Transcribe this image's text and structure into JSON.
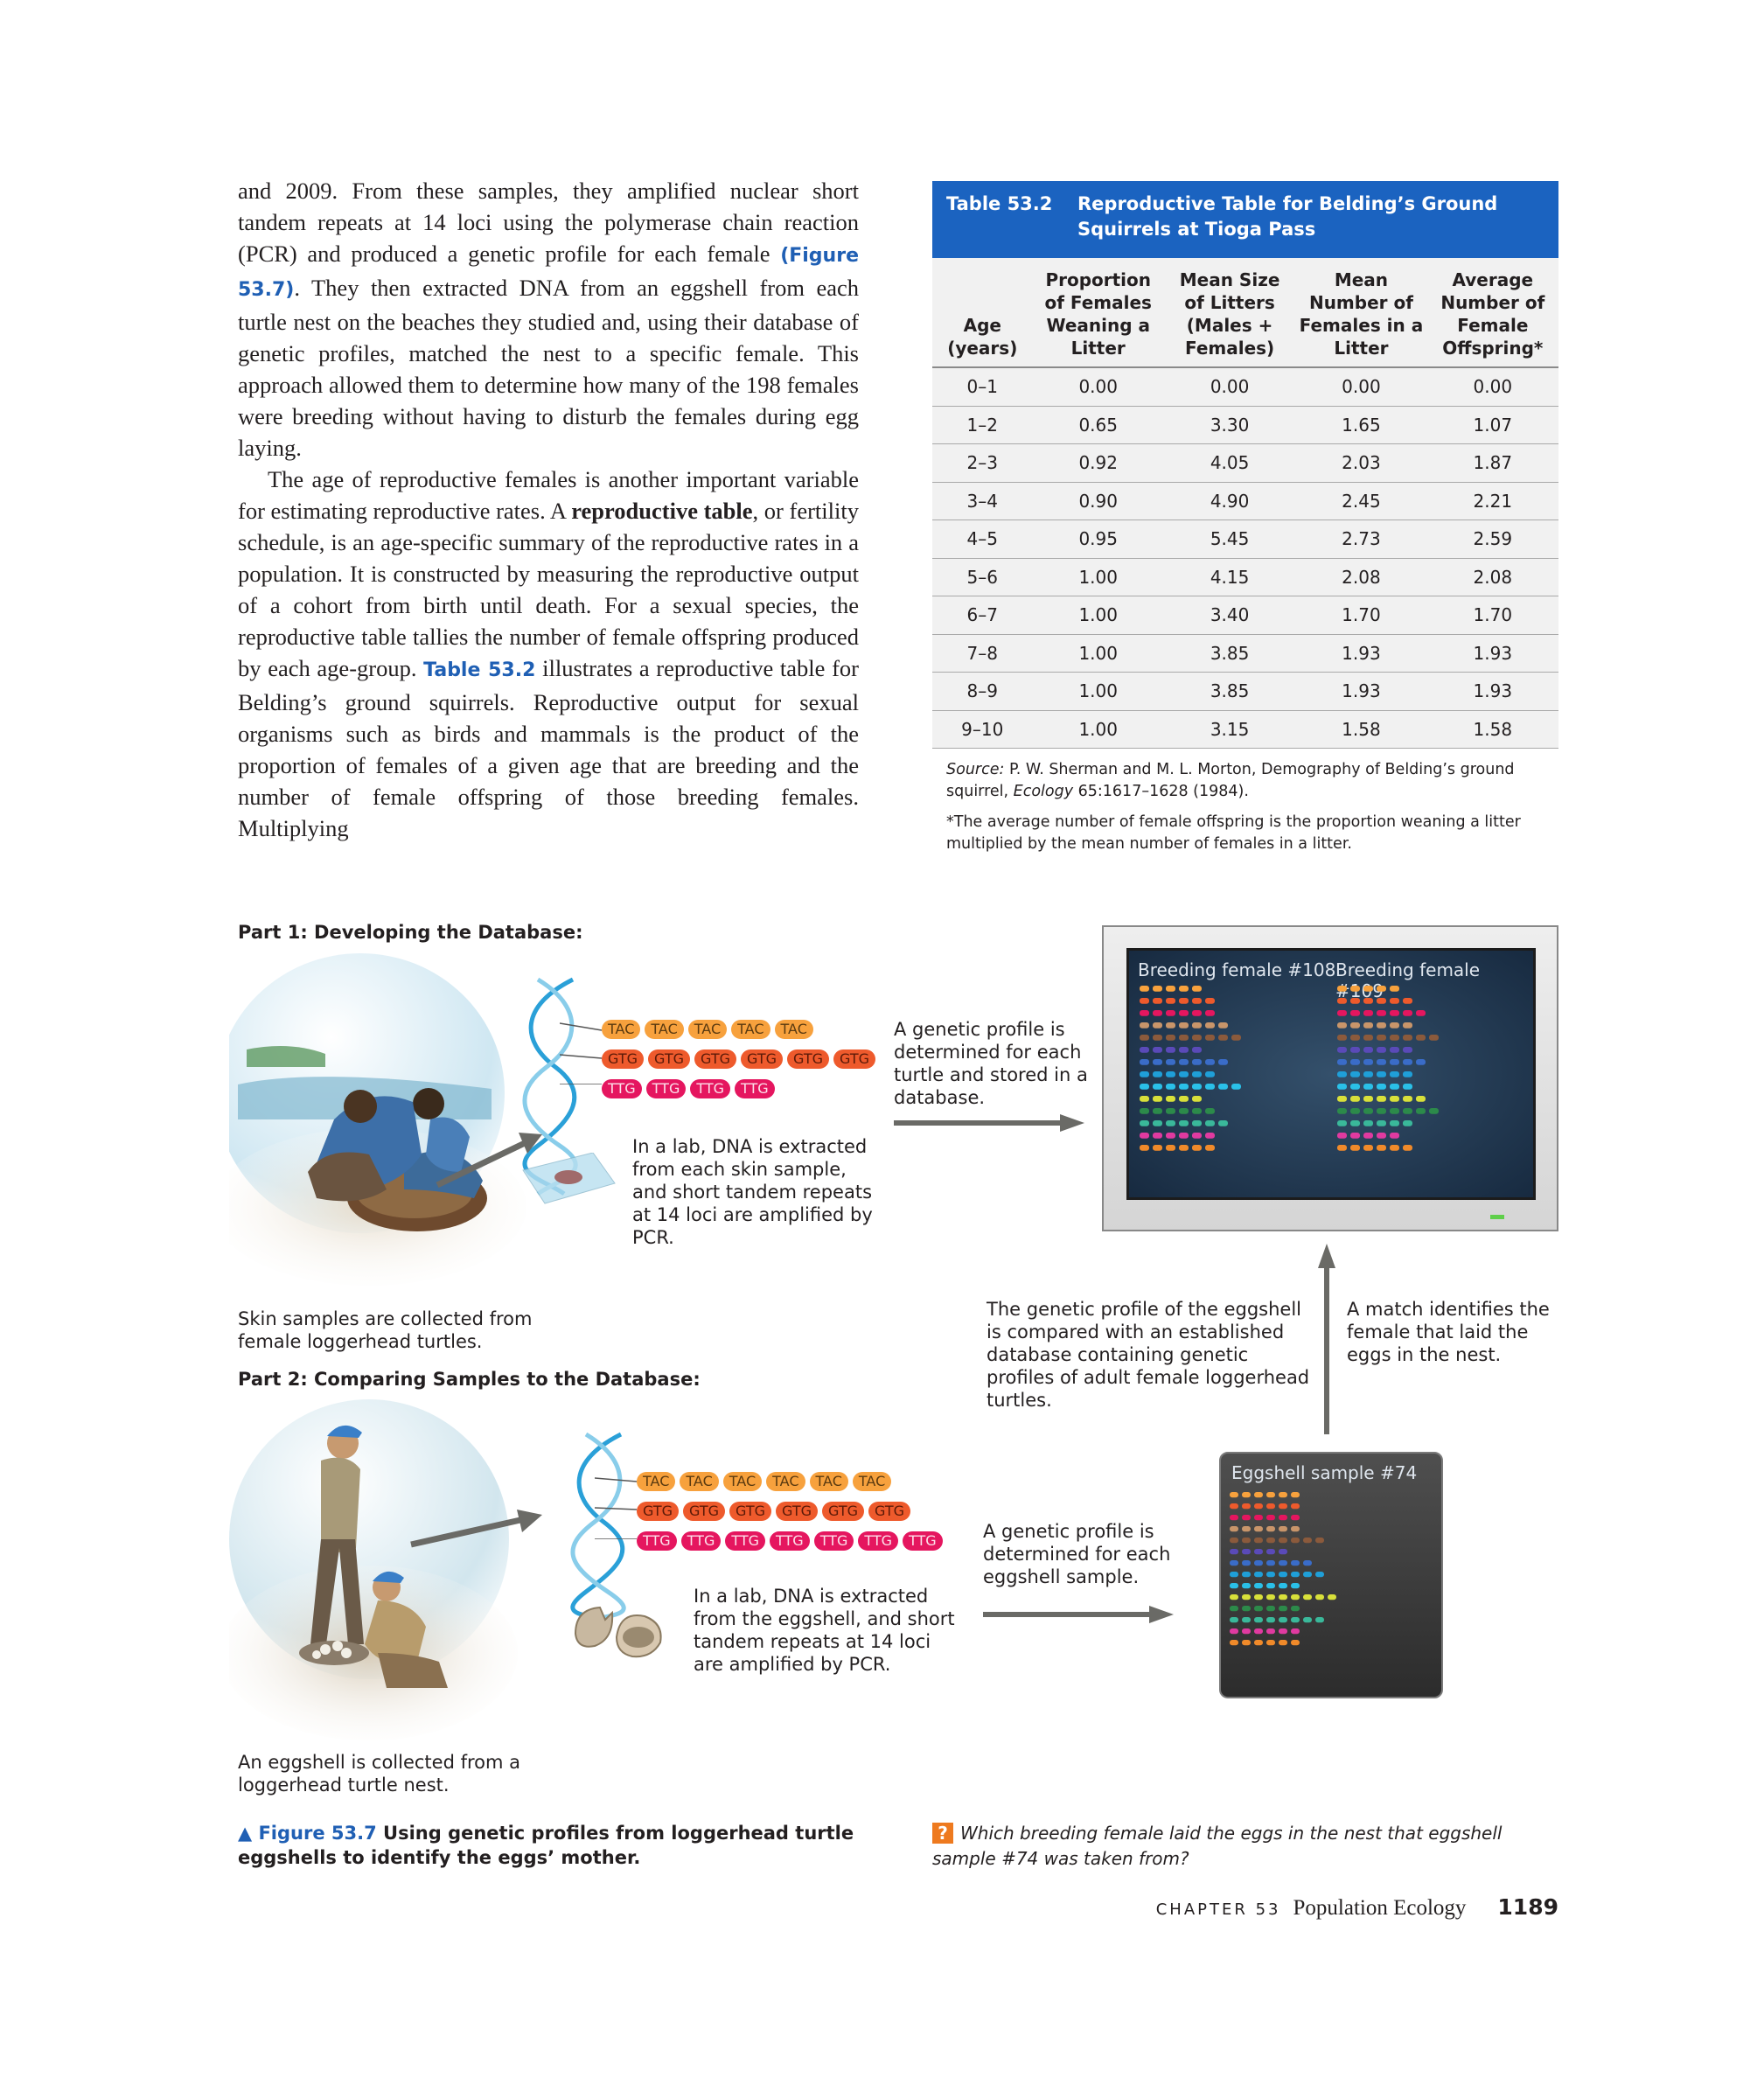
{
  "body": {
    "p1_a": "and 2009. From these samples, they amplified nuclear short tandem repeats at 14 loci using the polymerase chain reaction (PCR) and produced a genetic profile for each female ",
    "p1_ref": "(Figure 53.7)",
    "p1_b": ". They then extracted DNA from an eggshell from each turtle nest on the beaches they studied and, using their database of genetic profiles, matched the nest to a specific female. This approach allowed them to determine how many of the 198 females were breeding without having to disturb the females during egg laying.",
    "p2_a": "The age of reproductive females is another important variable for estimating reproductive rates. A ",
    "p2_term": "reproductive table",
    "p2_b": ", or fertility schedule, is an age-specific summary of the reproductive rates in a population. It is constructed by measuring the reproductive output of a cohort from birth until death. For a sexual species, the reproductive table tallies the number of female offspring produced by each age-group. ",
    "p2_ref": "Table 53.2",
    "p2_c": " illustrates a reproductive table for Belding’s ground squirrels. Reproductive output for sexual organisms such as birds and mammals is the product of the proportion of females of a given age that are breeding and the number of female offspring of those breeding females. Multiplying"
  },
  "table": {
    "number": "Table 53.2",
    "title": "Reproductive Table for Belding’s Ground Squirrels at Tioga Pass",
    "headers": [
      "Age (years)",
      "Proportion of Females Weaning a Litter",
      "Mean Size of Litters (Males + Females)",
      "Mean Number of Females in a Litter",
      "Average Number of Female Offspring*"
    ],
    "rows": [
      [
        "0–1",
        "0.00",
        "0.00",
        "0.00",
        "0.00"
      ],
      [
        "1–2",
        "0.65",
        "3.30",
        "1.65",
        "1.07"
      ],
      [
        "2–3",
        "0.92",
        "4.05",
        "2.03",
        "1.87"
      ],
      [
        "3–4",
        "0.90",
        "4.90",
        "2.45",
        "2.21"
      ],
      [
        "4–5",
        "0.95",
        "5.45",
        "2.73",
        "2.59"
      ],
      [
        "5–6",
        "1.00",
        "4.15",
        "2.08",
        "2.08"
      ],
      [
        "6–7",
        "1.00",
        "3.40",
        "1.70",
        "1.70"
      ],
      [
        "7–8",
        "1.00",
        "3.85",
        "1.93",
        "1.93"
      ],
      [
        "8–9",
        "1.00",
        "3.85",
        "1.93",
        "1.93"
      ],
      [
        "9–10",
        "1.00",
        "3.15",
        "1.58",
        "1.58"
      ]
    ],
    "source_label": "Source:",
    "source_text": " P. W. Sherman and M. L. Morton, Demography of Belding’s ground squirrel, ",
    "source_journal": "Ecology",
    "source_tail": " 65:1617–1628 (1984).",
    "footnote": "*The average number of female offspring is the proportion weaning a litter multiplied by the mean number of females in a litter."
  },
  "figure": {
    "part1_title": "Part 1: Developing the Database:",
    "part2_title": "Part 2: Comparing Samples to the Database:",
    "part1_lab": "In a lab, DNA is extracted from each skin sample, and short tandem repeats at 14 loci are amplified by PCR.",
    "part1_skin": "Skin samples are collected from female loggerhead turtles.",
    "part1_profile": "A genetic profile is determined for each turtle and stored in a database.",
    "seq1": {
      "tac": [
        "TAC",
        "TAC",
        "TAC",
        "TAC",
        "TAC"
      ],
      "gtg": [
        "GTG",
        "GTG",
        "GTG",
        "GTG",
        "GTG",
        "GTG"
      ],
      "ttg": [
        "TTG",
        "TTG",
        "TTG",
        "TTG"
      ]
    },
    "screen_label_a": "Breeding female #108",
    "screen_label_b": "Breeding female #109",
    "compare_text": "The genetic profile of the eggshell is compared with an established database containing genetic profiles of adult female loggerhead turtles.",
    "match_text": "A match identifies the female that laid the eggs in the nest.",
    "seq2": {
      "tac": [
        "TAC",
        "TAC",
        "TAC",
        "TAC",
        "TAC",
        "TAC"
      ],
      "gtg": [
        "GTG",
        "GTG",
        "GTG",
        "GTG",
        "GTG",
        "GTG"
      ],
      "ttg": [
        "TTG",
        "TTG",
        "TTG",
        "TTG",
        "TTG",
        "TTG",
        "TTG"
      ]
    },
    "part2_lab": "In a lab, DNA is extracted from the eggshell, and short tandem repeats at 14 loci are amplified by PCR.",
    "part2_profile": "A genetic profile is determined for each eggshell sample.",
    "eggshell_label": "Eggshell sample #74",
    "part2_egg": "An eggshell is collected from a loggerhead turtle nest.",
    "caption_marker": "▲ Figure 53.7",
    "caption_text": " Using genetic profiles from loggerhead turtle eggshells to identify the eggs’ mother.",
    "question_mark": "?",
    "question": "Which breeding female laid the eggs in the nest that eggshell sample #74 was taken from?"
  },
  "footer": {
    "chapter": "CHAPTER 53",
    "title": "Population Ecology",
    "page": "1189"
  },
  "colors": {
    "blue": "#1b63c0",
    "band_colors": [
      "#f7a13d",
      "#ee5a2c",
      "#e5165f",
      "#c8956a",
      "#8b5a3c",
      "#5a4ab8",
      "#3a6cc8",
      "#1f9fd8",
      "#2ac0e8",
      "#d8e03a",
      "#2c8a4a",
      "#3ab89a",
      "#e03aa0",
      "#f08a2a"
    ]
  }
}
